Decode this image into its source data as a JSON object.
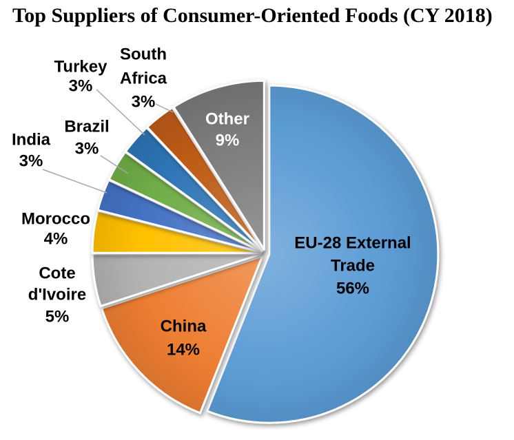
{
  "title": "Top Suppliers of Consumer-Oriented Foods (CY 2018)",
  "chart_data": {
    "type": "pie",
    "title": "Top Suppliers of Consumer-Oriented Foods (CY 2018)",
    "start_angle_deg": 0,
    "direction": "clockwise",
    "total": 100,
    "background": "#FFFFFF",
    "leader_line_color": "#A6A6A6",
    "slices": [
      {
        "label": "EU-28 External Trade",
        "value": 56,
        "pct_label": "56%",
        "color": "#5B9BD5",
        "label_lines": [
          "EU-28 External",
          "Trade"
        ],
        "label_placement": "inside",
        "label_color": "#000000"
      },
      {
        "label": "China",
        "value": 14,
        "pct_label": "14%",
        "color": "#ED7D31",
        "label_lines": [
          "China"
        ],
        "label_placement": "inside",
        "label_color": "#000000"
      },
      {
        "label": "Cote d'Ivoire",
        "value": 5,
        "pct_label": "5%",
        "color": "#B3B3B3",
        "label_lines": [
          "Cote",
          "d'Ivoire"
        ],
        "label_placement": "outside",
        "label_color": "#000000"
      },
      {
        "label": "Morocco",
        "value": 4,
        "pct_label": "4%",
        "color": "#FFC000",
        "label_lines": [
          "Morocco"
        ],
        "label_placement": "outside",
        "label_color": "#000000"
      },
      {
        "label": "India",
        "value": 3,
        "pct_label": "3%",
        "color": "#4472C4",
        "label_lines": [
          "India"
        ],
        "label_placement": "outside",
        "label_color": "#000000"
      },
      {
        "label": "Brazil",
        "value": 3,
        "pct_label": "3%",
        "color": "#70AD47",
        "label_lines": [
          "Brazil"
        ],
        "label_placement": "outside",
        "label_color": "#000000"
      },
      {
        "label": "Turkey",
        "value": 3,
        "pct_label": "3%",
        "color": "#2E75B6",
        "label_lines": [
          "Turkey"
        ],
        "label_placement": "outside",
        "label_color": "#000000"
      },
      {
        "label": "South Africa",
        "value": 3,
        "pct_label": "3%",
        "color": "#BC5A14",
        "label_lines": [
          "South",
          "Africa"
        ],
        "label_placement": "outside",
        "label_color": "#000000"
      },
      {
        "label": "Other",
        "value": 9,
        "pct_label": "9%",
        "color": "#7A7A7A",
        "label_lines": [
          "Other"
        ],
        "label_placement": "inside",
        "label_color": "#FFFFFF"
      }
    ]
  }
}
